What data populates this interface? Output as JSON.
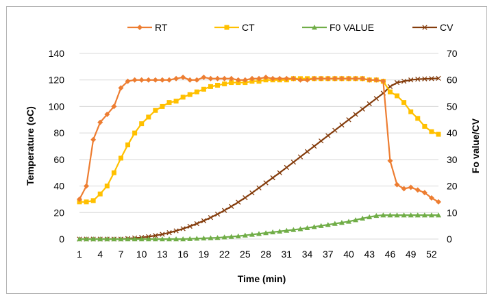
{
  "chart_data": {
    "type": "line",
    "title": "",
    "xlabel": "Time (min)",
    "ylabel": "Temperature (oC)",
    "y2label": "Fo value/CV",
    "ylim": [
      0,
      140
    ],
    "y2lim": [
      0,
      70
    ],
    "yticks": [
      0,
      20,
      40,
      60,
      80,
      100,
      120,
      140
    ],
    "y2ticks": [
      0,
      10,
      20,
      30,
      40,
      50,
      60,
      70
    ],
    "x": [
      1,
      2,
      3,
      4,
      5,
      6,
      7,
      8,
      9,
      10,
      11,
      12,
      13,
      14,
      15,
      16,
      17,
      18,
      19,
      20,
      21,
      22,
      23,
      24,
      25,
      26,
      27,
      28,
      29,
      30,
      31,
      32,
      33,
      34,
      35,
      36,
      37,
      38,
      39,
      40,
      41,
      42,
      43,
      44,
      45,
      46,
      47,
      48,
      49,
      50,
      51,
      52,
      53
    ],
    "xticks": [
      1,
      4,
      7,
      10,
      13,
      16,
      19,
      22,
      25,
      28,
      31,
      34,
      37,
      40,
      43,
      46,
      49,
      52
    ],
    "grid": true,
    "legend_position": "top",
    "series": [
      {
        "name": "RT",
        "axis": "left",
        "color": "#ED7D31",
        "marker": "diamond",
        "values": [
          30,
          40,
          75,
          88,
          94,
          100,
          114,
          119,
          120,
          120,
          120,
          120,
          120,
          120,
          121,
          122,
          120,
          120,
          122,
          121,
          121,
          121,
          121,
          120,
          120,
          121,
          121,
          122,
          121,
          121,
          121,
          121,
          120,
          120,
          121,
          121,
          121,
          121,
          121,
          121,
          121,
          121,
          120,
          120,
          119,
          59,
          41,
          38,
          39,
          37,
          35,
          31,
          28
        ]
      },
      {
        "name": "CT",
        "axis": "left",
        "color": "#FFC000",
        "marker": "square",
        "values": [
          28,
          28,
          29,
          34,
          40,
          50,
          61,
          71,
          80,
          87,
          92,
          97,
          100,
          103,
          104,
          107,
          109,
          111,
          113,
          115,
          116,
          117,
          118,
          118,
          118,
          119,
          119,
          120,
          120,
          120,
          120,
          121,
          121,
          121,
          121,
          121,
          121,
          121,
          121,
          121,
          121,
          121,
          120,
          120,
          119,
          111,
          108,
          103,
          96,
          91,
          85,
          81,
          79
        ]
      },
      {
        "name": "F0 VALUE",
        "axis": "right",
        "color": "#70AD47",
        "marker": "triangle",
        "values": [
          0,
          0,
          0,
          0,
          0,
          0,
          0,
          0,
          0,
          0,
          0,
          0,
          0,
          0,
          0,
          0,
          0.1,
          0.2,
          0.3,
          0.4,
          0.5,
          0.7,
          0.9,
          1.1,
          1.4,
          1.7,
          2.0,
          2.3,
          2.6,
          2.9,
          3.2,
          3.5,
          3.8,
          4.2,
          4.6,
          5.0,
          5.4,
          5.8,
          6.2,
          6.6,
          7.2,
          7.8,
          8.3,
          8.8,
          9.0,
          9.0,
          9.0,
          9.0,
          9.0,
          9.0,
          9.0,
          9.0,
          9.0
        ]
      },
      {
        "name": "CV",
        "axis": "right",
        "color": "#843C0C",
        "marker": "x",
        "values": [
          0,
          0,
          0,
          0,
          0,
          0,
          0,
          0.2,
          0.4,
          0.6,
          0.9,
          1.3,
          1.8,
          2.4,
          3.1,
          3.9,
          4.8,
          5.8,
          6.9,
          8.1,
          9.4,
          10.8,
          12.3,
          13.9,
          15.6,
          17.4,
          19.3,
          21.2,
          23.1,
          25.0,
          27.0,
          29.0,
          31.0,
          33.0,
          35.0,
          37.0,
          39.0,
          41.0,
          43.0,
          45.0,
          47.0,
          49.0,
          51.0,
          53.0,
          55.0,
          57.5,
          59.0,
          59.5,
          60.0,
          60.3,
          60.4,
          60.5,
          60.6
        ]
      }
    ]
  }
}
